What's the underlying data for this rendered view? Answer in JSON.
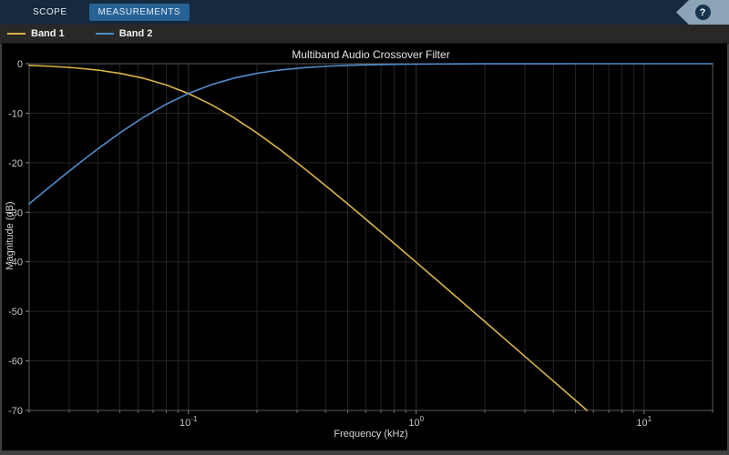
{
  "toolbar": {
    "tabs": [
      {
        "label": "SCOPE"
      },
      {
        "label": "MEASUREMENTS"
      }
    ],
    "help_label": "?"
  },
  "legend": {
    "items": [
      {
        "label": "Band 1",
        "color": "#d9b44a"
      },
      {
        "label": "Band 2",
        "color": "#4f8bc9"
      }
    ]
  },
  "colors": {
    "plot_background": "#000000",
    "grid_minor": "#242424",
    "grid_major": "#303030",
    "axis_border": "#5a5a5a",
    "tick_mark": "#808080",
    "tick_label": "#c8c8c8"
  },
  "chart_data": {
    "type": "line",
    "title": "Multiband Audio Crossover Filter",
    "xlabel": "Frequency (kHz)",
    "ylabel": "Magnitude (dB)",
    "x_scale": "log",
    "xlim": [
      0.02,
      20
    ],
    "ylim": [
      -70,
      0
    ],
    "yticks": [
      0,
      -10,
      -20,
      -30,
      -40,
      -50,
      -60,
      -70
    ],
    "xticks": [
      {
        "pos": 0.1,
        "base": "10",
        "exp": "-1"
      },
      {
        "pos": 1,
        "base": "10",
        "exp": "0"
      },
      {
        "pos": 10,
        "base": "10",
        "exp": "1"
      }
    ],
    "grid": "on",
    "legend_position": "top-outside",
    "crossover_point": {
      "x": 0.1,
      "y": -6
    },
    "series": [
      {
        "name": "Band 1",
        "color": "#d9b44a",
        "x": [
          0.02,
          0.025,
          0.032,
          0.04,
          0.05,
          0.063,
          0.08,
          0.1,
          0.126,
          0.158,
          0.2,
          0.25,
          0.32,
          0.4,
          0.5,
          0.63,
          0.8,
          1.0,
          1.26,
          1.58,
          2.0,
          2.51,
          3.16,
          4.0,
          5.0,
          5.62
        ],
        "y": [
          -0.34,
          -0.53,
          -0.85,
          -1.29,
          -1.94,
          -2.9,
          -4.3,
          -6.02,
          -8.26,
          -10.87,
          -13.98,
          -17.21,
          -21.02,
          -24.61,
          -28.3,
          -32.19,
          -36.26,
          -40.09,
          -44.07,
          -47.98,
          -52.06,
          -56.0,
          -60.0,
          -64.09,
          -67.96,
          -70.0
        ]
      },
      {
        "name": "Band 2",
        "color": "#4f8bc9",
        "x": [
          0.02,
          0.025,
          0.032,
          0.04,
          0.05,
          0.063,
          0.08,
          0.1,
          0.126,
          0.158,
          0.2,
          0.25,
          0.32,
          0.4,
          0.5,
          0.63,
          0.8,
          1.0,
          1.26,
          1.58,
          2.0,
          2.51,
          3.16,
          4.0,
          5.0,
          6.3,
          8.0,
          10.0,
          12.6,
          15.8,
          20.0
        ],
        "y": [
          -28.3,
          -24.61,
          -20.64,
          -17.21,
          -13.98,
          -10.93,
          -8.17,
          -6.02,
          -4.24,
          -2.93,
          -1.94,
          -1.29,
          -0.81,
          -0.53,
          -0.34,
          -0.22,
          -0.13,
          -0.09,
          -0.05,
          -0.03,
          -0.02,
          -0.01,
          -0.01,
          -0.01,
          0,
          0,
          0,
          0,
          0,
          0,
          0
        ]
      }
    ]
  }
}
